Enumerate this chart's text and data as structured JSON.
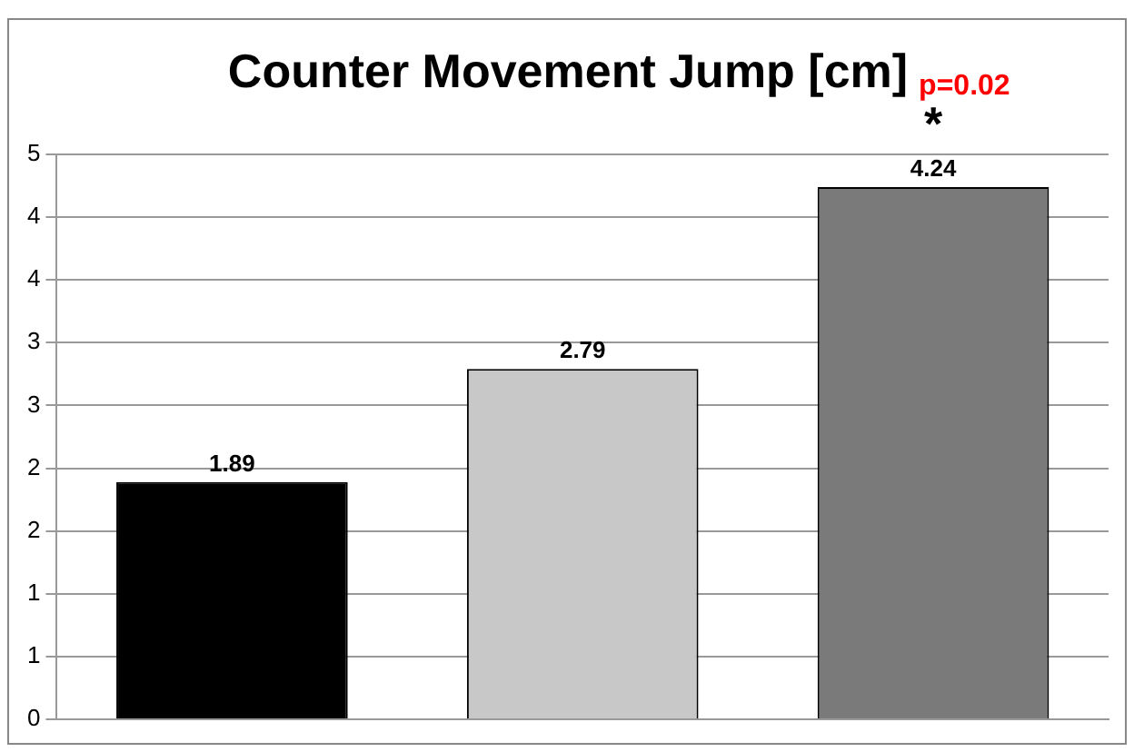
{
  "chart_data": {
    "type": "bar",
    "title": "Counter Movement Jump [cm]",
    "annotations": [
      "p=0.02",
      "*"
    ],
    "categories": [
      null,
      null,
      null
    ],
    "values": [
      1.89,
      2.79,
      4.24
    ],
    "colors": [
      "#000000",
      "#c8c8c8",
      "#7a7a7a"
    ],
    "data_labels": true,
    "ylim": [
      0,
      4.5
    ],
    "yticks": [
      0,
      {
        "value": 0.5,
        "label": "1"
      },
      1,
      {
        "value": 1.5,
        "label": "2"
      },
      2,
      {
        "value": 2.5,
        "label": "3"
      },
      3,
      {
        "value": 3.5,
        "label": "4"
      },
      4,
      {
        "value": 4.5,
        "label": "5"
      }
    ],
    "grid": "y",
    "legend": false
  }
}
